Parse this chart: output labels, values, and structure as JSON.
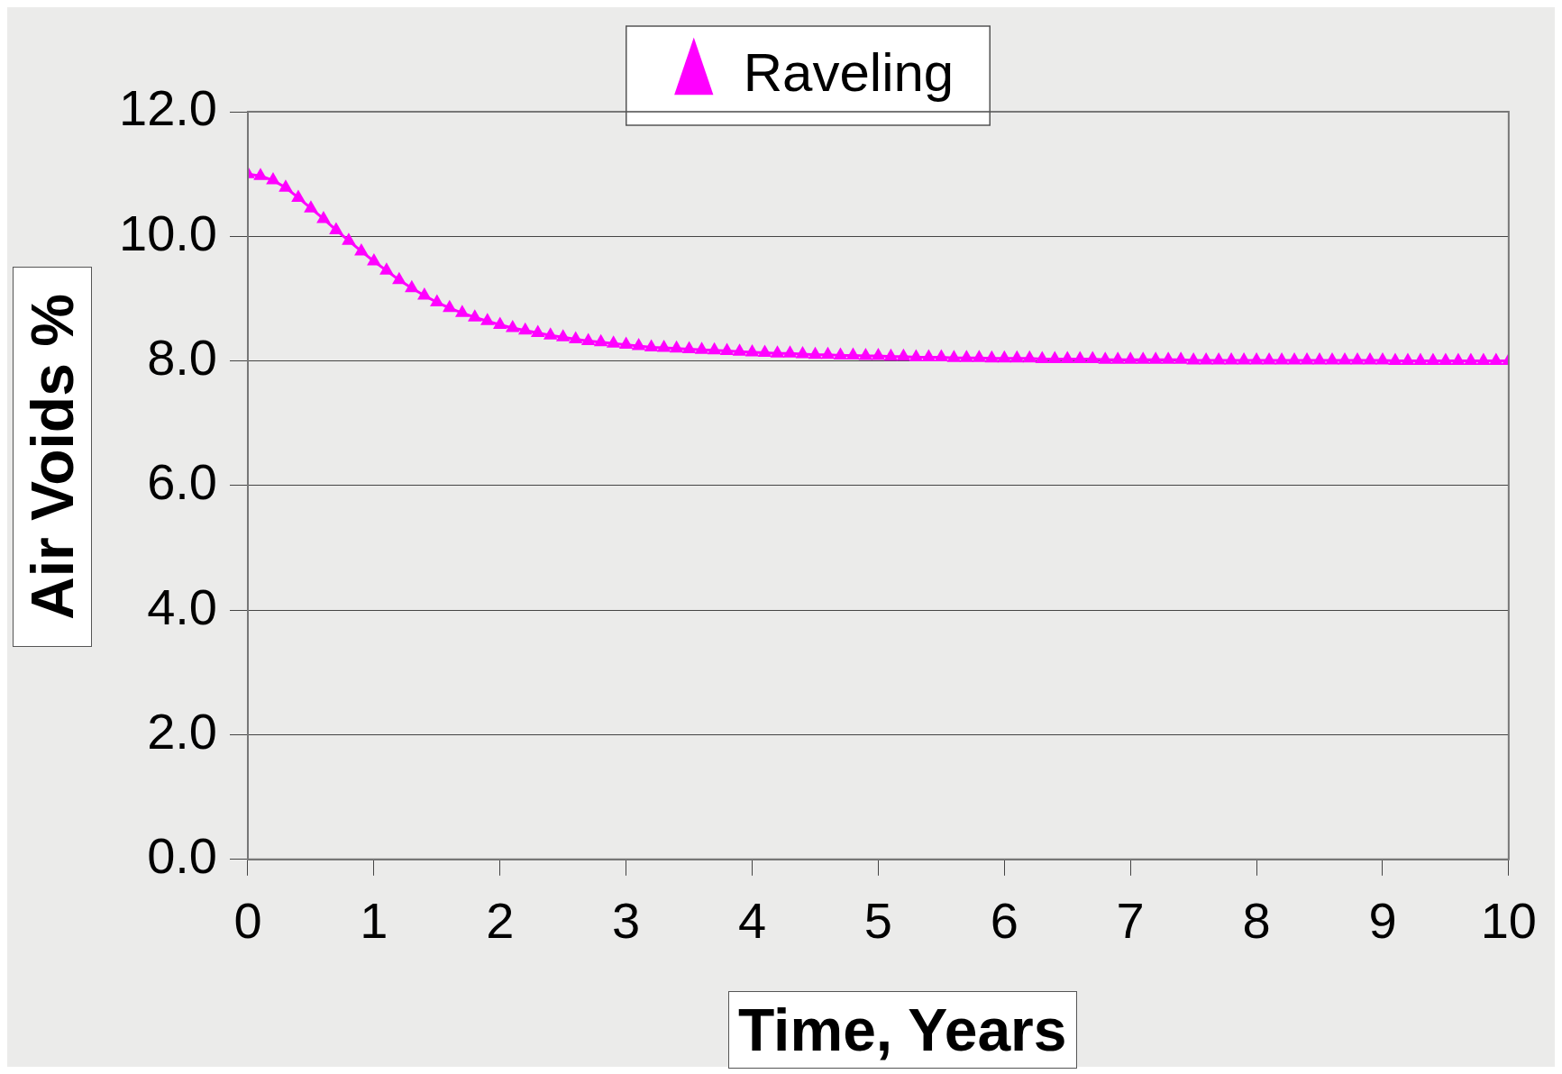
{
  "chart_data": {
    "type": "line",
    "xlabel": "Time, Years",
    "ylabel": "Air Voids %",
    "x": [
      0,
      0.1,
      0.2,
      0.3,
      0.4,
      0.5,
      0.6,
      0.7,
      0.8,
      0.9,
      1,
      1.1,
      1.2,
      1.3,
      1.4,
      1.5,
      1.6,
      1.7,
      1.8,
      1.9,
      2,
      2.1,
      2.2,
      2.3,
      2.4,
      2.5,
      2.6,
      2.7,
      2.8,
      2.9,
      3,
      3.1,
      3.2,
      3.3,
      3.4,
      3.5,
      3.6,
      3.7,
      3.8,
      3.9,
      4,
      4.1,
      4.2,
      4.3,
      4.4,
      4.5,
      4.6,
      4.7,
      4.8,
      4.9,
      5,
      5.1,
      5.2,
      5.3,
      5.4,
      5.5,
      5.6,
      5.7,
      5.8,
      5.9,
      6,
      6.1,
      6.2,
      6.3,
      6.4,
      6.5,
      6.6,
      6.7,
      6.8,
      6.9,
      7,
      7.1,
      7.2,
      7.3,
      7.4,
      7.5,
      7.6,
      7.7,
      7.8,
      7.9,
      8,
      8.1,
      8.2,
      8.3,
      8.4,
      8.5,
      8.6,
      8.7,
      8.8,
      8.9,
      9,
      9.1,
      9.2,
      9.3,
      9.4,
      9.5,
      9.6,
      9.7,
      9.8,
      9.9,
      10
    ],
    "series": [
      {
        "name": "Raveling",
        "color": "#ff00ff",
        "values": [
          11.0,
          10.97,
          10.9,
          10.78,
          10.62,
          10.45,
          10.28,
          10.1,
          9.93,
          9.76,
          9.6,
          9.45,
          9.3,
          9.17,
          9.05,
          8.94,
          8.85,
          8.77,
          8.7,
          8.64,
          8.58,
          8.53,
          8.49,
          8.45,
          8.41,
          8.38,
          8.35,
          8.32,
          8.3,
          8.28,
          8.26,
          8.24,
          8.22,
          8.21,
          8.2,
          8.19,
          8.18,
          8.17,
          8.16,
          8.15,
          8.14,
          8.13,
          8.12,
          8.12,
          8.11,
          8.1,
          8.1,
          8.09,
          8.09,
          8.08,
          8.08,
          8.07,
          8.07,
          8.06,
          8.06,
          8.06,
          8.05,
          8.05,
          8.05,
          8.04,
          8.04,
          8.04,
          8.04,
          8.03,
          8.03,
          8.03,
          8.03,
          8.03,
          8.02,
          8.02,
          8.02,
          8.02,
          8.02,
          8.02,
          8.02,
          8.01,
          8.01,
          8.01,
          8.01,
          8.01,
          8.01,
          8.01,
          8.01,
          8.01,
          8.01,
          8.01,
          8.01,
          8.01,
          8.01,
          8.01,
          8.01,
          8.0,
          8.0,
          8.0,
          8.0,
          8.0,
          8.0,
          8.0,
          8.0,
          8.0,
          8.0
        ]
      }
    ],
    "xlim": [
      0,
      10
    ],
    "xticks": [
      0,
      1,
      2,
      3,
      4,
      5,
      6,
      7,
      8,
      9,
      10
    ],
    "ylim": [
      0,
      12
    ],
    "yticks": [
      {
        "value": 0,
        "label": "0.0"
      },
      {
        "value": 2,
        "label": "2.0"
      },
      {
        "value": 4,
        "label": "4.0"
      },
      {
        "value": 6,
        "label": "6.0"
      },
      {
        "value": 8,
        "label": "8.0"
      },
      {
        "value": 10,
        "label": "10.0"
      },
      {
        "value": 12,
        "label": "12.0"
      }
    ],
    "grid": "y",
    "legend": "top",
    "marker": "triangle",
    "line_style": "solid"
  }
}
